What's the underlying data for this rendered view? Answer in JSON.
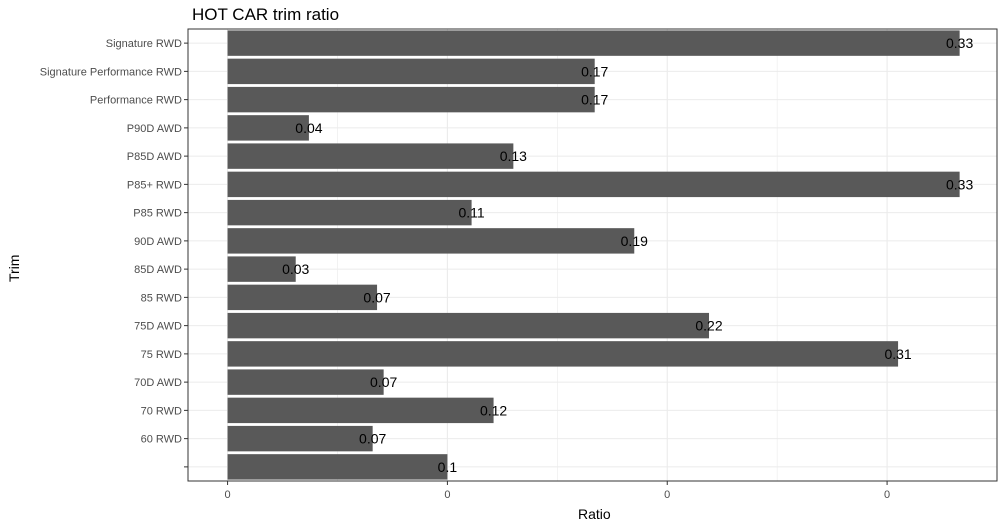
{
  "chart_data": {
    "type": "bar",
    "orientation": "horizontal",
    "title": "HOT CAR trim ratio",
    "xlabel": "Ratio",
    "ylabel": "Trim",
    "xlim": [
      -0.018,
      0.35
    ],
    "x_tick_values": [
      0,
      0.1,
      0.2,
      0.3
    ],
    "x_tick_labels": [
      "0",
      "0",
      "0",
      "0"
    ],
    "grid": true,
    "categories": [
      "Signature RWD",
      "Signature Performance RWD",
      "Performance RWD",
      "P90D AWD",
      "P85D AWD",
      "P85+ RWD",
      "P85 RWD",
      "90D AWD",
      "85D AWD",
      "85 RWD",
      "75D AWD",
      "75 RWD",
      "70D AWD",
      "70 RWD",
      "60 RWD",
      ""
    ],
    "values": [
      0.333,
      0.167,
      0.167,
      0.037,
      0.13,
      0.333,
      0.111,
      0.185,
      0.031,
      0.068,
      0.219,
      0.305,
      0.071,
      0.121,
      0.066,
      0.1
    ],
    "data_labels": [
      "0.33",
      "0.17",
      "0.17",
      "0.04",
      "0.13",
      "0.33",
      "0.11",
      "0.19",
      "0.03",
      "0.07",
      "0.22",
      "0.31",
      "0.07",
      "0.12",
      "0.07",
      "0.1"
    ],
    "bar_color": "#595959",
    "grid_color": "#ebebeb",
    "panel_border_color": "#333333"
  }
}
